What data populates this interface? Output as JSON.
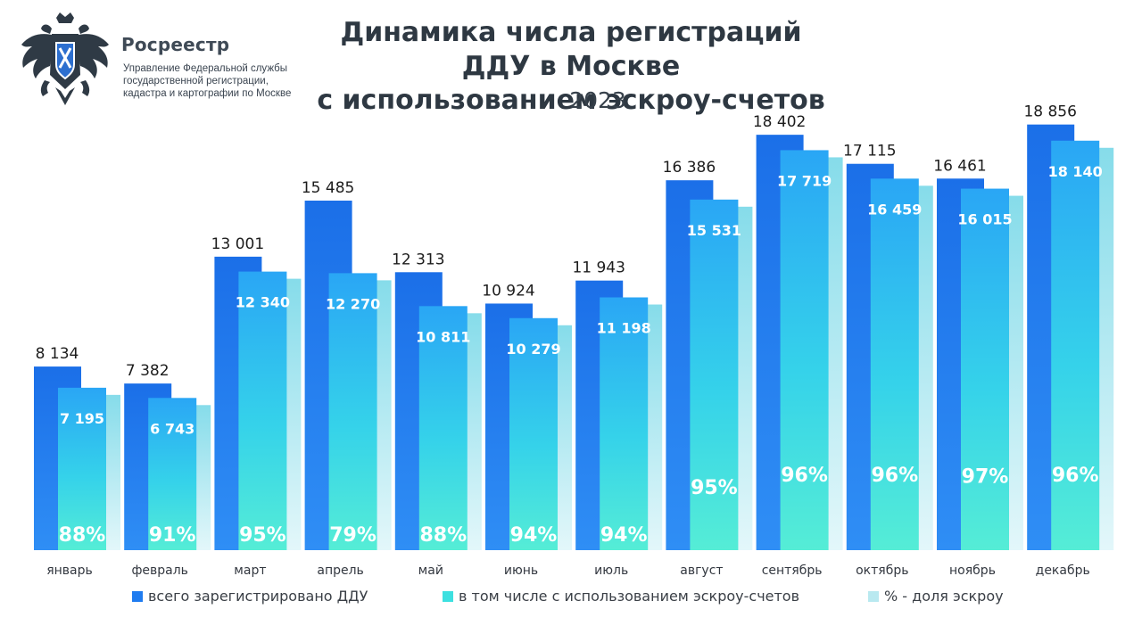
{
  "header": {
    "brand_name": "Росреестр",
    "brand_sub_lines": [
      "Управление Федеральной службы",
      "государственной регистрации,",
      "кадастра и картографии по Москве"
    ]
  },
  "chart_data": {
    "type": "bar",
    "title": "Динамика числа регистраций ДДУ в Москве с использованием эскроу-счетов",
    "title_lines": [
      "Динамика числа регистраций ДДУ в Москве",
      "с использованием эскроу-счетов"
    ],
    "subtitle": "2023",
    "categories": [
      "январь",
      "февраль",
      "март",
      "апрель",
      "май",
      "июнь",
      "июль",
      "август",
      "сентябрь",
      "октябрь",
      "ноябрь",
      "декабрь"
    ],
    "series": [
      {
        "name": "всего зарегистрировано ДДУ",
        "color": "#1f7cf0",
        "values": [
          8134,
          7382,
          13001,
          15485,
          12313,
          10924,
          11943,
          16386,
          18402,
          17115,
          16461,
          18856
        ],
        "labels": [
          "8 134",
          "7 382",
          "13 001",
          "15 485",
          "12 313",
          "10 924",
          "11 943",
          "16 386",
          "18 402",
          "17 115",
          "16 461",
          "18 856"
        ]
      },
      {
        "name": "в том числе с использованием эскроу-счетов",
        "color": "#3de0e0",
        "values": [
          7195,
          6743,
          12340,
          12270,
          10811,
          10279,
          11198,
          15531,
          17719,
          16459,
          16015,
          18140
        ],
        "labels": [
          "7 195",
          "6 743",
          "12 340",
          "12 270",
          "10 811",
          "10 279",
          "11 198",
          "15 531",
          "17 719",
          "16 459",
          "16 015",
          "18 140"
        ]
      },
      {
        "name": "% - доля эскроу",
        "color": "#b9e9f0",
        "values": [
          88,
          91,
          95,
          79,
          88,
          94,
          94,
          95,
          96,
          96,
          97,
          96
        ],
        "labels": [
          "88%",
          "91%",
          "95%",
          "79%",
          "88%",
          "94%",
          "94%",
          "95%",
          "96%",
          "96%",
          "97%",
          "96%"
        ]
      }
    ],
    "ylim": [
      0,
      20000
    ],
    "grid": false,
    "legend_position": "bottom"
  }
}
